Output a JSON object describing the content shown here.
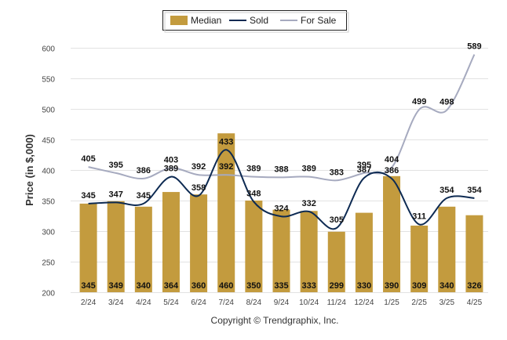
{
  "chart_data": {
    "type": "bar",
    "categories": [
      "2/24",
      "3/24",
      "4/24",
      "5/24",
      "6/24",
      "7/24",
      "8/24",
      "9/24",
      "10/24",
      "11/24",
      "12/24",
      "1/25",
      "2/25",
      "3/25",
      "4/25"
    ],
    "series": [
      {
        "name": "Median",
        "type": "bar",
        "values": [
          345,
          349,
          340,
          364,
          360,
          460,
          350,
          335,
          333,
          299,
          330,
          390,
          309,
          340,
          326
        ]
      },
      {
        "name": "Sold",
        "type": "line",
        "values": [
          345,
          347,
          345,
          389,
          358,
          433,
          348,
          324,
          332,
          305,
          387,
          386,
          311,
          354,
          354
        ]
      },
      {
        "name": "For Sale",
        "type": "line",
        "values": [
          405,
          395,
          386,
          403,
          392,
          392,
          389,
          388,
          389,
          383,
          395,
          404,
          499,
          498,
          589
        ]
      }
    ],
    "ylabel": "Price (in $,000)",
    "ylim": [
      200,
      600
    ],
    "yticks": [
      200,
      250,
      300,
      350,
      400,
      450,
      500,
      550,
      600
    ],
    "grid": true,
    "legend_position": "top-center",
    "colors": {
      "Median": "#c39b3e",
      "Sold": "#0d2a52",
      "For Sale": "#a6aabf"
    },
    "footer": "Copyright © Trendgraphix, Inc."
  }
}
